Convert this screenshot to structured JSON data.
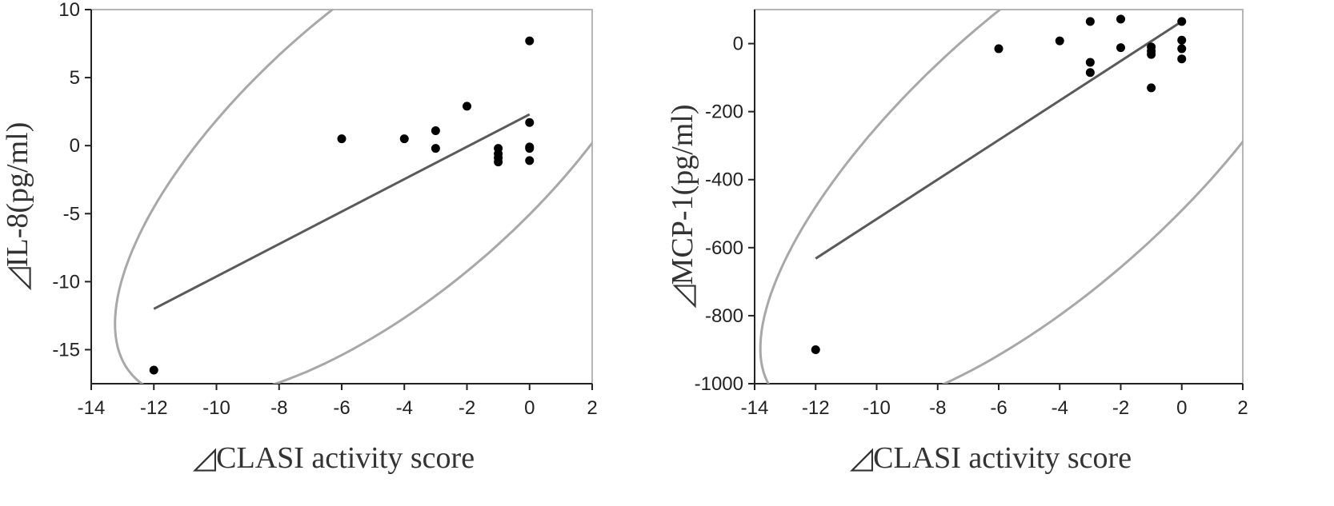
{
  "chart_data": [
    {
      "type": "scatter",
      "title": "",
      "xlabel": "◿CLASI activity score",
      "ylabel": "◿IL-8(pg/ml)",
      "xlim": [
        -14,
        2
      ],
      "ylim": [
        -17.5,
        10
      ],
      "xticks": [
        -14,
        -12,
        -10,
        -8,
        -6,
        -4,
        -2,
        0,
        2
      ],
      "yticks": [
        10,
        5,
        0,
        -5,
        -10,
        -15
      ],
      "grid": false,
      "points": [
        {
          "x": 0,
          "y": 7.7
        },
        {
          "x": -2,
          "y": 2.9
        },
        {
          "x": 0,
          "y": 1.7
        },
        {
          "x": -3,
          "y": 1.1
        },
        {
          "x": -6,
          "y": 0.5
        },
        {
          "x": -4,
          "y": 0.5
        },
        {
          "x": -3,
          "y": -0.2
        },
        {
          "x": 0,
          "y": -0.1
        },
        {
          "x": 0,
          "y": -0.2
        },
        {
          "x": -1,
          "y": -0.2
        },
        {
          "x": -1,
          "y": -0.6
        },
        {
          "x": -1,
          "y": -0.9
        },
        {
          "x": -1,
          "y": -1.2
        },
        {
          "x": 0,
          "y": -1.1
        },
        {
          "x": -12,
          "y": -16.5
        }
      ],
      "fit_line": {
        "x": [
          -12,
          0
        ],
        "y": [
          -12.0,
          2.3
        ]
      },
      "ellipse": {
        "center": [
          -4.38,
          -0.05
        ],
        "angle_deg": 41.2,
        "semi_major": 11.07,
        "semi_minor": 4.59
      }
    },
    {
      "type": "scatter",
      "title": "",
      "xlabel": "◿CLASI activity score",
      "ylabel": "◿MCP-1(pg/ml)",
      "xlim": [
        -14,
        2
      ],
      "ylim": [
        -1000,
        100
      ],
      "xticks": [
        -14,
        -12,
        -10,
        -8,
        -6,
        -4,
        -2,
        0,
        2
      ],
      "yticks": [
        0,
        -200,
        -400,
        -600,
        -800,
        -1000
      ],
      "grid": false,
      "points": [
        {
          "x": -3,
          "y": 65
        },
        {
          "x": -2,
          "y": 72
        },
        {
          "x": 0,
          "y": 65
        },
        {
          "x": -4,
          "y": 8
        },
        {
          "x": -6,
          "y": -15
        },
        {
          "x": -2,
          "y": -12
        },
        {
          "x": -1,
          "y": -10
        },
        {
          "x": -1,
          "y": -22
        },
        {
          "x": -1,
          "y": -32
        },
        {
          "x": 0,
          "y": 10
        },
        {
          "x": 0,
          "y": -15
        },
        {
          "x": 0,
          "y": -45
        },
        {
          "x": -3,
          "y": -55
        },
        {
          "x": -3,
          "y": -85
        },
        {
          "x": -1,
          "y": -130
        },
        {
          "x": -12,
          "y": -900
        }
      ],
      "fit_line": {
        "x": [
          -12,
          0
        ],
        "y": [
          -632,
          65
        ]
      },
      "ellipse": {
        "center": [
          -4.4,
          -310
        ],
        "angle_deg": 42,
        "semi_major": 12.0,
        "semi_minor": 4.5
      }
    }
  ]
}
